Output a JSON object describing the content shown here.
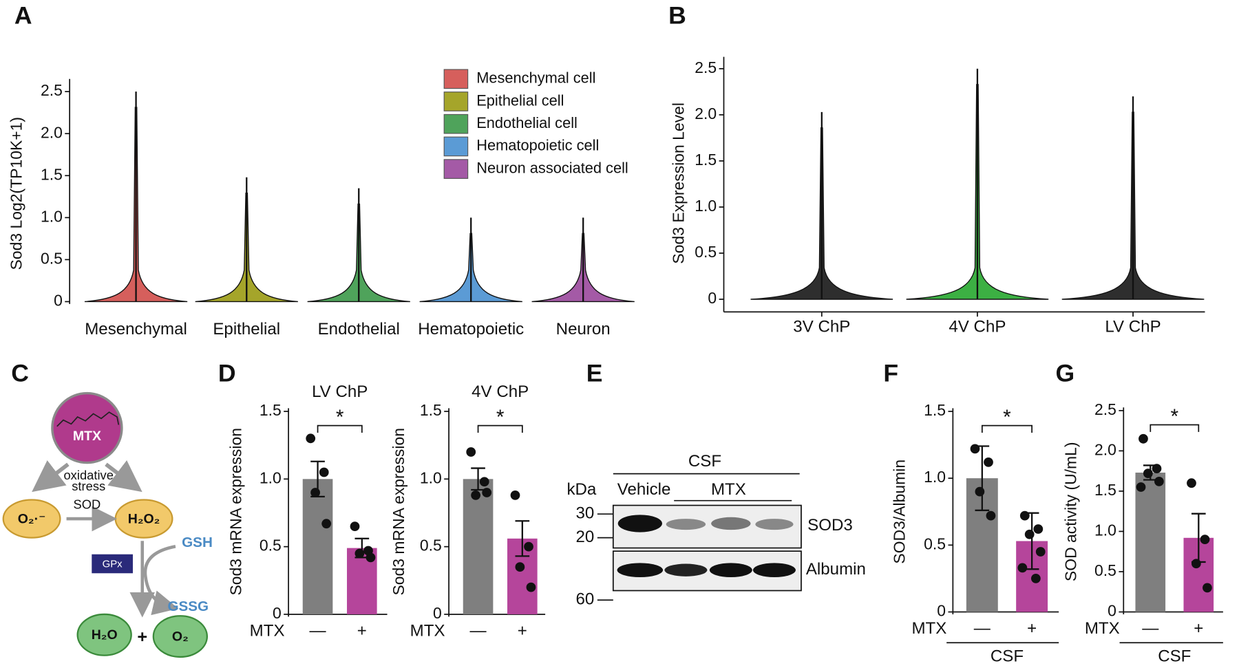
{
  "panels": [
    "A",
    "B",
    "C",
    "D",
    "E",
    "F",
    "G"
  ],
  "pathway": {
    "drug": "MTX",
    "process": [
      "oxidative",
      "stress"
    ],
    "enzyme1": "SOD",
    "reactant": "O₂·⁻",
    "product": "H₂O₂",
    "enzyme2": "GPx",
    "cofactor": "GSH",
    "cofactor_oxidized": "GSSG",
    "products": [
      "H₂O",
      "+",
      "O₂"
    ]
  },
  "blot": {
    "sample": "CSF",
    "lanes": [
      "Vehicle",
      "MTX"
    ],
    "unit": "kDa",
    "markers": [
      30,
      20,
      60
    ],
    "bands": [
      "SOD3",
      "Albumin"
    ]
  },
  "chart_data": [
    {
      "type": "violin",
      "ylabel": "Sod3 Log2(TP10K+1)",
      "categories": [
        "Mesenchymal",
        "Epithelial",
        "Endothelial",
        "Hematopoietic",
        "Neuron"
      ],
      "max": [
        2.5,
        1.48,
        1.35,
        1.0,
        1.0
      ],
      "colors": [
        "#d65f5c",
        "#a5a52a",
        "#4fa35b",
        "#5b9bd5",
        "#a45aa6"
      ],
      "legend": [
        {
          "name": "Mesenchymal cell",
          "color": "#d65f5c"
        },
        {
          "name": "Epithelial cell",
          "color": "#a5a52a"
        },
        {
          "name": "Endothelial cell",
          "color": "#4fa35b"
        },
        {
          "name": "Hematopoietic cell",
          "color": "#5b9bd5"
        },
        {
          "name": "Neuron associated cell",
          "color": "#a45aa6"
        }
      ],
      "ylim": [
        0,
        2.5
      ],
      "yticks": [
        0,
        0.5,
        {
          "value": 1,
          "label": "1.0"
        },
        1.5,
        {
          "value": 2,
          "label": "2.0"
        },
        2.5
      ]
    },
    {
      "type": "violin",
      "ylabel": "Sod3 Expression Level",
      "categories": [
        "3V ChP",
        "4V ChP",
        "LV ChP"
      ],
      "max": [
        2.03,
        2.5,
        2.2
      ],
      "colors": [
        "#2e2e2e",
        "#3cb043",
        "#2e2e2e"
      ],
      "ylim": [
        0,
        2.5
      ],
      "yticks": [
        0,
        0.5,
        {
          "value": 1,
          "label": "1.0"
        },
        1.5,
        {
          "value": 2,
          "label": "2.0"
        },
        2.5
      ]
    },
    {
      "type": "bar",
      "title": "LV ChP",
      "ylabel": "Sod3 mRNA expression",
      "xlabel": "MTX",
      "categories": [
        "—",
        "+"
      ],
      "values": [
        1.0,
        0.49
      ],
      "errors": [
        0.13,
        0.07
      ],
      "points": [
        [
          1.3,
          1.05,
          0.9,
          0.67
        ],
        [
          0.65,
          0.47,
          0.45,
          0.42
        ]
      ],
      "colors": [
        "#7f7f7f",
        "#b5459b"
      ],
      "significance": "*",
      "ylim": [
        0,
        1.5
      ],
      "yticks": [
        0,
        0.5,
        {
          "value": 1,
          "label": "1.0"
        },
        1.5
      ]
    },
    {
      "type": "bar",
      "title": "4V ChP",
      "ylabel": "Sod3 mRNA expression",
      "xlabel": "MTX",
      "categories": [
        "—",
        "+"
      ],
      "values": [
        1.0,
        0.56
      ],
      "errors": [
        0.08,
        0.13
      ],
      "points": [
        [
          1.2,
          0.98,
          0.88,
          0.9
        ],
        [
          0.88,
          0.5,
          0.35,
          0.2
        ]
      ],
      "colors": [
        "#7f7f7f",
        "#b5459b"
      ],
      "significance": "*",
      "ylim": [
        0,
        1.5
      ],
      "yticks": [
        0,
        0.5,
        {
          "value": 1,
          "label": "1.0"
        },
        1.5
      ]
    },
    {
      "type": "bar",
      "ylabel": "SOD3/Albumin",
      "xlabel": "MTX",
      "group_label": "CSF",
      "categories": [
        "—",
        "+"
      ],
      "values": [
        1.0,
        0.53
      ],
      "errors": [
        0.24,
        0.21
      ],
      "points": [
        [
          1.22,
          1.12,
          0.9,
          0.72
        ],
        [
          0.72,
          0.62,
          0.58,
          0.45,
          0.33,
          0.25
        ]
      ],
      "colors": [
        "#7f7f7f",
        "#b5459b"
      ],
      "significance": "*",
      "ylim": [
        0,
        1.5
      ],
      "yticks": [
        0,
        0.5,
        {
          "value": 1,
          "label": "1.0"
        },
        1.5
      ]
    },
    {
      "type": "bar",
      "ylabel": "SOD activity (U/mL)",
      "xlabel": "MTX",
      "group_label": "CSF",
      "categories": [
        "—",
        "+"
      ],
      "values": [
        1.73,
        0.92
      ],
      "errors": [
        0.09,
        0.3
      ],
      "points": [
        [
          2.15,
          1.78,
          1.72,
          1.62,
          1.55
        ],
        [
          1.6,
          0.9,
          0.6,
          0.3
        ]
      ],
      "colors": [
        "#7f7f7f",
        "#b5459b"
      ],
      "significance": "*",
      "ylim": [
        0,
        2.5
      ],
      "yticks": [
        0,
        0.5,
        {
          "value": 1,
          "label": "1.0"
        },
        1.5,
        {
          "value": 2,
          "label": "2.0"
        },
        2.5
      ]
    }
  ]
}
